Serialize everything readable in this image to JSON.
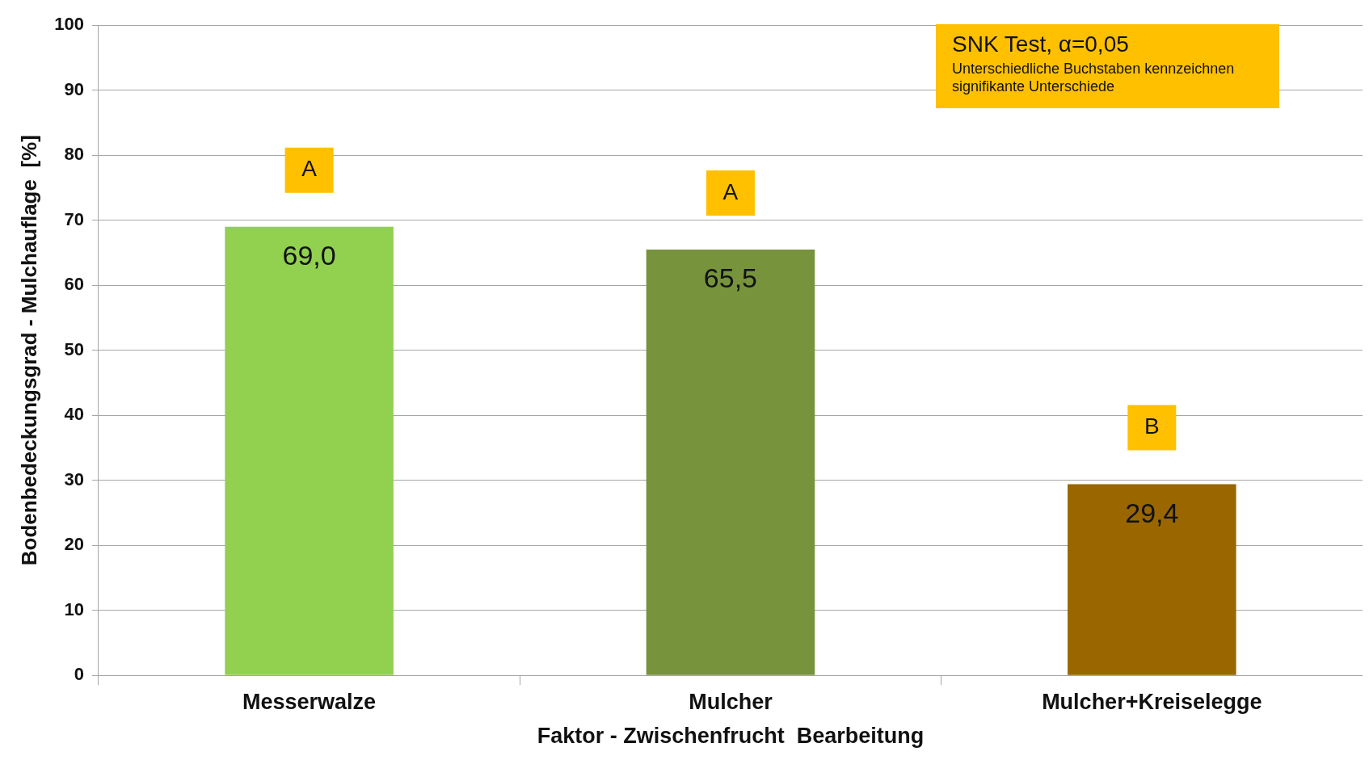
{
  "chart_data": {
    "type": "bar",
    "xlabel": "Faktor - Zwischenfrucht  Bearbeitung",
    "ylabel": "Bodenbedeckungsgrad - Mulchauflage  [%]",
    "categories": [
      "Messerwalze",
      "Mulcher",
      "Mulcher+Kreiselegge"
    ],
    "values": [
      69.0,
      65.5,
      29.4
    ],
    "colors": [
      "#92d050",
      "#77933c",
      "#996600"
    ],
    "value_labels": [
      "69,0",
      "65,5",
      "29,4"
    ],
    "ylim": [
      0,
      100
    ],
    "yticks": [
      0,
      10,
      20,
      30,
      40,
      50,
      60,
      70,
      80,
      90,
      100
    ],
    "grid": "y",
    "legend": false,
    "annotations": [
      "A",
      "A",
      "B",
      "SNK Test, α=0,05",
      "Unterschiedliche Buchstaben kennzeichnen signifikante Unterschiede"
    ]
  }
}
